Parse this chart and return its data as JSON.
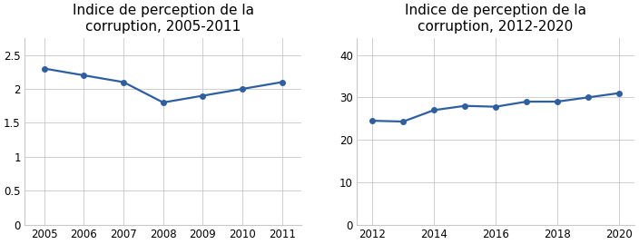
{
  "chart1": {
    "title": "Indice de perception de la\ncorruption, 2005-2011",
    "x": [
      2005,
      2006,
      2007,
      2008,
      2009,
      2010,
      2011
    ],
    "y": [
      2.3,
      2.2,
      2.1,
      1.8,
      1.9,
      2.0,
      2.1
    ],
    "ylim": [
      0,
      2.75
    ],
    "yticks": [
      0,
      0.5,
      1.0,
      1.5,
      2.0,
      2.5
    ],
    "xticks": [
      2005,
      2006,
      2007,
      2008,
      2009,
      2010,
      2011
    ],
    "xlim": [
      2004.5,
      2011.5
    ]
  },
  "chart2": {
    "title": "Indice de perception de la\ncorruption, 2012-2020",
    "x": [
      2012,
      2013,
      2014,
      2015,
      2016,
      2017,
      2018,
      2019,
      2020
    ],
    "y": [
      24.5,
      24.3,
      27.0,
      28.0,
      27.8,
      29.0,
      29.0,
      30.0,
      31.0
    ],
    "ylim": [
      0,
      44
    ],
    "yticks": [
      0,
      10,
      20,
      30,
      40
    ],
    "xticks": [
      2012,
      2014,
      2016,
      2018,
      2020
    ],
    "xlim": [
      2011.5,
      2020.5
    ]
  },
  "line_color": "#2E5FA3",
  "marker": "o",
  "markersize": 4,
  "linewidth": 1.6,
  "title_fontsize": 11,
  "tick_fontsize": 8.5,
  "grid_color": "#C8C8C8",
  "spine_color": "#C8C8C8",
  "background_color": "#FFFFFF"
}
